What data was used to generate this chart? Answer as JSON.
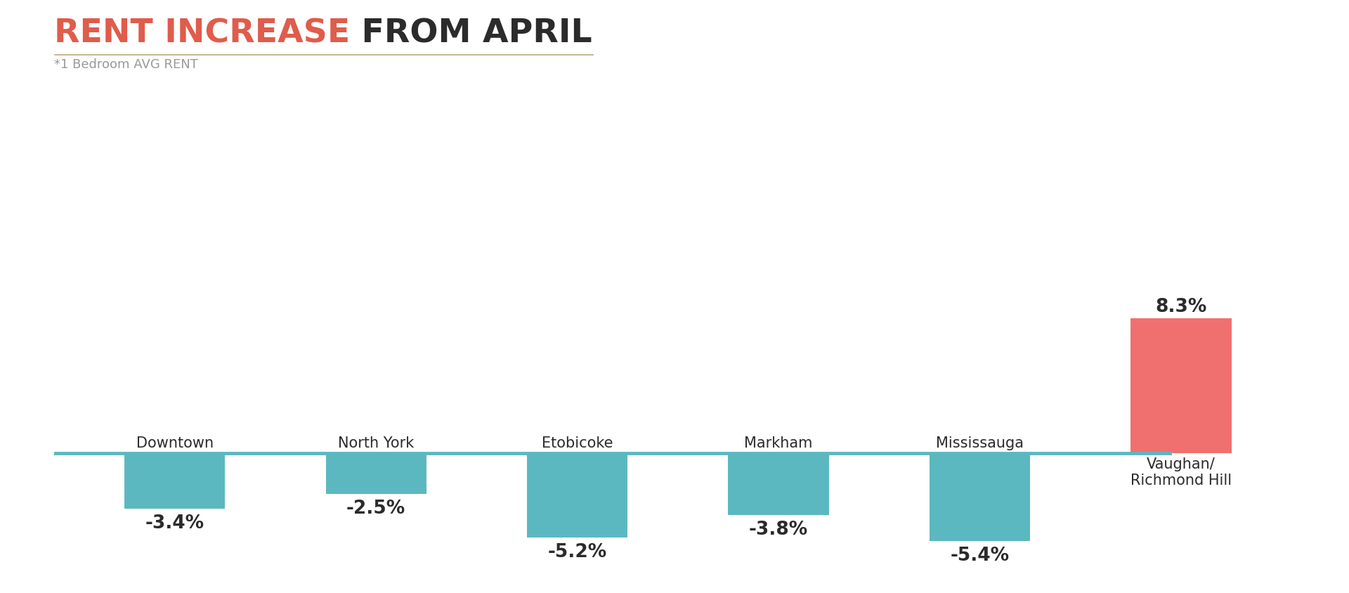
{
  "title_colored": "RENT INCREASE",
  "title_plain": " FROM APRIL",
  "subtitle": "*1 Bedroom AVG RENT",
  "categories": [
    "Downtown",
    "North York",
    "Etobicoke",
    "Markham",
    "Mississauga",
    "Vaughan/\nRichmond Hill"
  ],
  "values": [
    -3.4,
    -2.5,
    -5.2,
    -3.8,
    -5.4,
    8.3
  ],
  "bar_colors": [
    "#5cb8c0",
    "#5cb8c0",
    "#5cb8c0",
    "#5cb8c0",
    "#5cb8c0",
    "#f07070"
  ],
  "value_labels": [
    "-3.4%",
    "-2.5%",
    "-5.2%",
    "-3.8%",
    "-5.4%",
    "8.3%"
  ],
  "title_color_highlight": "#e05c4b",
  "title_color_plain": "#2b2b2b",
  "subtitle_color": "#999999",
  "label_color": "#2b2b2b",
  "category_color": "#2b2b2b",
  "baseline_color": "#5cb8c0",
  "separator_color": "#c8b89a",
  "background_color": "#ffffff",
  "title_fontsize": 34,
  "subtitle_fontsize": 13,
  "label_fontsize": 19,
  "category_fontsize": 15,
  "ylim": [
    -7.5,
    11.5
  ],
  "bar_width": 0.5
}
